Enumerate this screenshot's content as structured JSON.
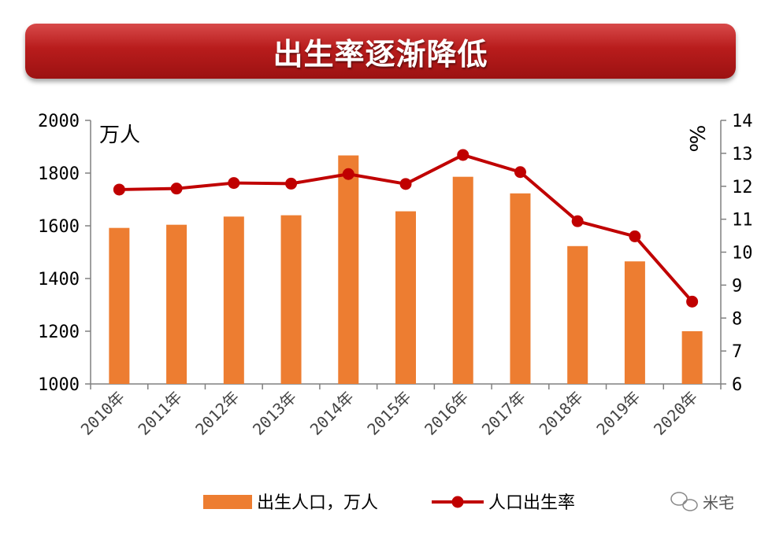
{
  "banner": {
    "title": "出生率逐渐降低"
  },
  "watermark": {
    "text": "米宅"
  },
  "colors": {
    "bar": "#ed7d31",
    "line": "#c00000",
    "banner": "#b81c1c"
  },
  "chart_data": {
    "type": "bar",
    "title": "出生率逐渐降低",
    "categories": [
      "2010年",
      "2011年",
      "2012年",
      "2013年",
      "2014年",
      "2015年",
      "2016年",
      "2017年",
      "2018年",
      "2019年",
      "2020年"
    ],
    "series": [
      {
        "name": "出生人口，万人",
        "type": "bar",
        "axis": "left",
        "values": [
          1592,
          1604,
          1635,
          1640,
          1867,
          1655,
          1786,
          1723,
          1523,
          1465,
          1200
        ]
      },
      {
        "name": "人口出生率",
        "type": "line",
        "axis": "right",
        "values": [
          11.9,
          11.93,
          12.1,
          12.08,
          12.37,
          12.07,
          12.95,
          12.43,
          10.94,
          10.48,
          8.5
        ]
      }
    ],
    "y_left": {
      "label": "万人",
      "min": 1000,
      "max": 2000,
      "ticks": [
        1000,
        1200,
        1400,
        1600,
        1800,
        2000
      ]
    },
    "y_right": {
      "label": "‰",
      "min": 6,
      "max": 14,
      "ticks": [
        6,
        7,
        8,
        9,
        10,
        11,
        12,
        13,
        14
      ]
    },
    "grid": false,
    "legend_position": "bottom"
  }
}
